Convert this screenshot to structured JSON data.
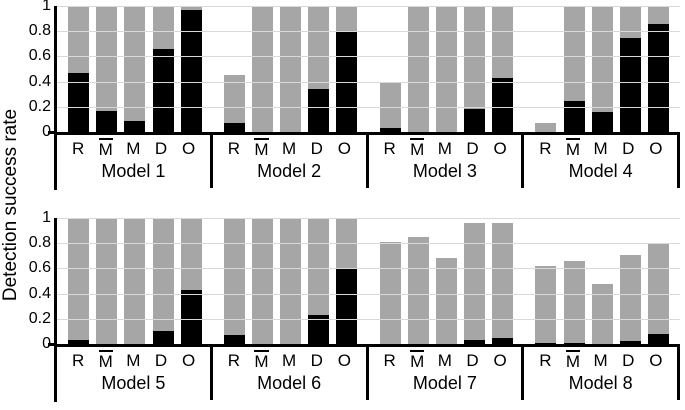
{
  "chart_data": {
    "type": "bar",
    "stacked": true,
    "ylabel": "Detection success rate",
    "ylim": [
      0,
      1
    ],
    "grid": true,
    "yticks": [
      {
        "value": 1,
        "label": "1"
      },
      {
        "value": 0.8,
        "label": "0.8"
      },
      {
        "value": 0.6,
        "label": "0.6"
      },
      {
        "value": 0.4,
        "label": "0.4"
      },
      {
        "value": 0.2,
        "label": "0.2"
      },
      {
        "value": 0,
        "label": "0"
      }
    ],
    "categories": [
      {
        "text": "R",
        "overline": false
      },
      {
        "text": "M",
        "overline": true
      },
      {
        "text": "M",
        "overline": false
      },
      {
        "text": "D",
        "overline": false
      },
      {
        "text": "O",
        "overline": false
      }
    ],
    "panels_per_row": 4,
    "panels": [
      {
        "label": "Model 1",
        "black": [
          0.47,
          0.17,
          0.09,
          0.66,
          0.97
        ],
        "total": [
          1,
          1,
          1,
          1,
          1
        ]
      },
      {
        "label": "Model 2",
        "black": [
          0.07,
          0,
          0,
          0.34,
          0.8
        ],
        "total": [
          0.45,
          1,
          1,
          1,
          1
        ]
      },
      {
        "label": "Model 3",
        "black": [
          0.03,
          0,
          0,
          0.18,
          0.43
        ],
        "total": [
          0.39,
          1,
          1,
          1,
          1
        ]
      },
      {
        "label": "Model 4",
        "black": [
          0,
          0.25,
          0.16,
          0.75,
          0.86
        ],
        "total": [
          0.07,
          1,
          1,
          1,
          1
        ]
      },
      {
        "label": "Model 5",
        "black": [
          0.03,
          0,
          0,
          0.1,
          0.43
        ],
        "total": [
          0.99,
          1,
          1,
          1,
          1
        ]
      },
      {
        "label": "Model 6",
        "black": [
          0.07,
          0,
          0,
          0.23,
          0.6
        ],
        "total": [
          1,
          1,
          1,
          1,
          1
        ]
      },
      {
        "label": "Model 7",
        "black": [
          0,
          0,
          0,
          0.03,
          0.05
        ],
        "total": [
          0.81,
          0.85,
          0.68,
          0.96,
          0.96
        ]
      },
      {
        "label": "Model 8",
        "black": [
          0.01,
          0.01,
          0,
          0.02,
          0.08
        ],
        "total": [
          0.62,
          0.66,
          0.48,
          0.71,
          0.79
        ]
      }
    ],
    "colors": {
      "bar_black": "#000000",
      "bar_gray": "#a6a6a6",
      "gridline": "#d9d9d9",
      "axis": "#000000"
    }
  }
}
